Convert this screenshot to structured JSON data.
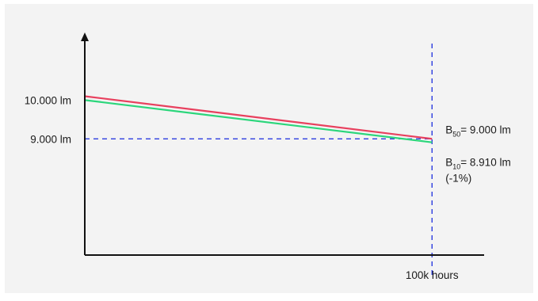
{
  "chart_data": {
    "type": "line",
    "x": [
      0,
      100000
    ],
    "series": [
      {
        "name": "B50",
        "values": [
          10100,
          9000
        ],
        "color": "#e8405e"
      },
      {
        "name": "B10",
        "values": [
          10000,
          8910
        ],
        "color": "#2bd67b"
      }
    ],
    "ylim": [
      6000,
      11500
    ],
    "xlim": [
      0,
      115000
    ],
    "reference": {
      "y": 9000,
      "x": 100000,
      "color": "#2b3be0",
      "style": "dashed"
    },
    "y_tick_labels": [
      {
        "value": 10000,
        "text": "10.000 lm"
      },
      {
        "value": 9000,
        "text": "9.000 lm"
      }
    ],
    "x_tick_labels": [
      {
        "value": 100000,
        "text": "100k hours"
      }
    ],
    "annotations": {
      "b50": {
        "main": "B",
        "sub": "50",
        "rest": "= 9.000 lm"
      },
      "b10": {
        "main": "B",
        "sub": "10",
        "rest": "= 8.910 lm",
        "line2": "(-1%)"
      }
    },
    "axis_color": "#111111"
  }
}
